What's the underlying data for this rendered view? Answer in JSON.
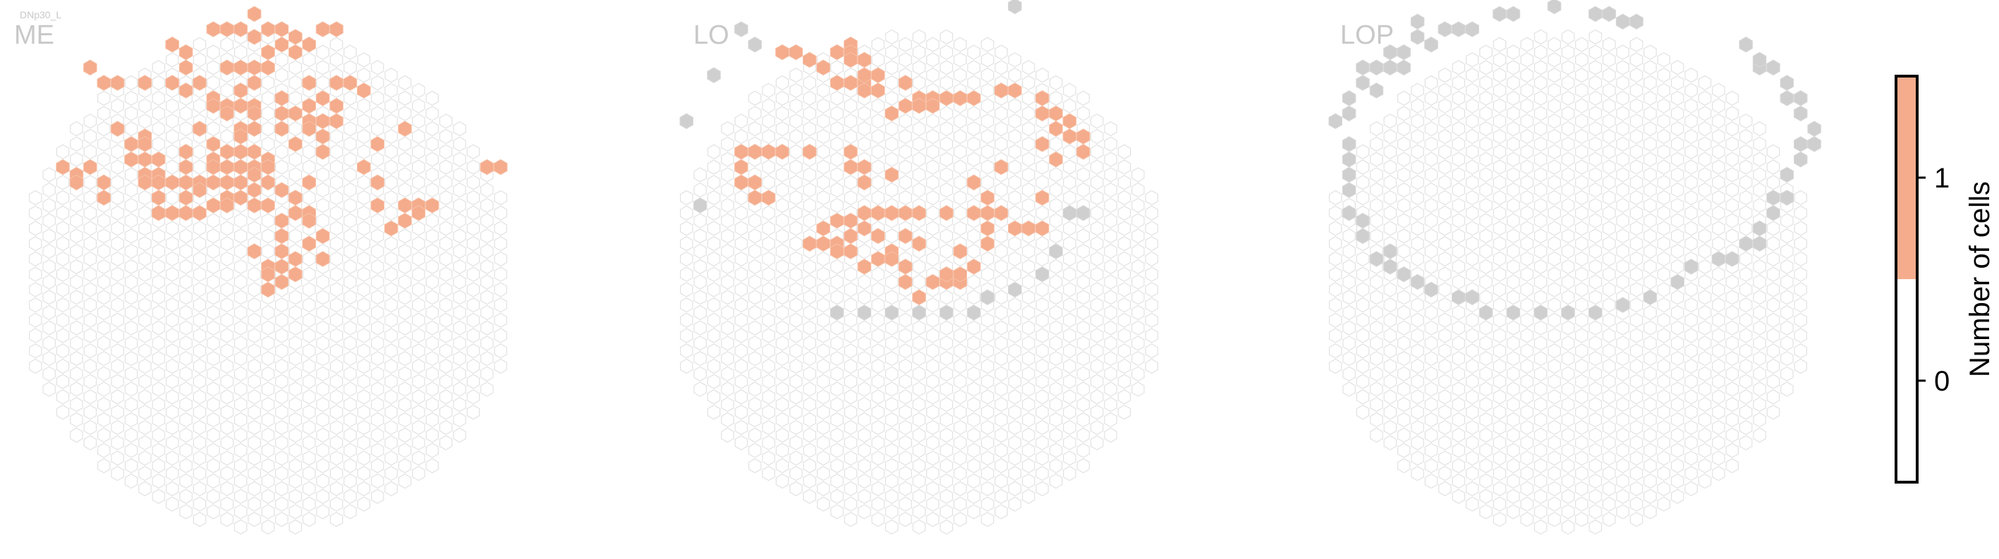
{
  "figure": {
    "cell_type": "DNp30_L",
    "colors": {
      "empty_stroke": "#e2e2e2",
      "empty_fill": "#ffffff",
      "one_fill": "#f4ac8c",
      "one_stroke": "#f7c1a8",
      "outside_fill": "#cfcfcf",
      "outside_stroke": "#d9d9d9"
    }
  },
  "chart_data": {
    "type": "heatmap",
    "description": "Hexagonal eye-map columns per neuropil; filled hexes show number of cells per column",
    "panels": [
      {
        "name": "ME",
        "grid": {
          "columns": 35,
          "radius_rows": 18
        },
        "ones": [
          [
            13,
            3
          ],
          [
            14,
            4
          ],
          [
            15,
            3
          ],
          [
            16,
            2
          ],
          [
            17,
            3
          ],
          [
            18,
            4
          ],
          [
            19,
            4
          ],
          [
            21,
            3
          ],
          [
            22,
            4
          ],
          [
            10,
            6
          ],
          [
            11,
            6
          ],
          [
            16,
            5
          ],
          [
            17,
            6
          ],
          [
            18,
            6
          ],
          [
            19,
            6
          ],
          [
            20,
            6
          ],
          [
            11,
            8
          ],
          [
            14,
            9
          ],
          [
            15,
            8
          ],
          [
            16,
            9
          ],
          [
            17,
            8
          ],
          [
            4,
            9
          ],
          [
            5,
            10
          ],
          [
            6,
            11
          ],
          [
            8,
            11
          ],
          [
            10,
            11
          ],
          [
            11,
            11
          ],
          [
            12,
            11
          ],
          [
            13,
            12
          ],
          [
            15,
            11
          ],
          [
            16,
            11
          ],
          [
            20,
            11
          ],
          [
            21,
            12
          ],
          [
            22,
            11
          ],
          [
            23,
            10
          ],
          [
            24,
            12
          ],
          [
            13,
            13
          ],
          [
            14,
            14
          ],
          [
            15,
            13
          ],
          [
            16,
            14
          ],
          [
            18,
            13
          ],
          [
            19,
            14
          ],
          [
            20,
            14
          ],
          [
            22,
            14
          ],
          [
            14,
            15
          ],
          [
            15,
            16
          ],
          [
            16,
            15
          ],
          [
            18,
            15
          ],
          [
            20,
            16
          ],
          [
            21,
            15
          ],
          [
            6,
            17
          ],
          [
            7,
            18
          ],
          [
            8,
            18
          ],
          [
            12,
            17
          ],
          [
            13,
            18
          ],
          [
            15,
            17
          ],
          [
            16,
            17
          ],
          [
            18,
            17
          ],
          [
            19,
            18
          ],
          [
            20,
            17
          ],
          [
            21,
            17
          ],
          [
            22,
            16
          ],
          [
            27,
            16
          ],
          [
            25,
            18
          ],
          [
            8,
            19
          ],
          [
            9,
            20
          ],
          [
            11,
            19
          ],
          [
            13,
            20
          ],
          [
            14,
            20
          ],
          [
            15,
            19
          ],
          [
            16,
            20
          ],
          [
            17,
            20
          ],
          [
            21,
            19
          ],
          [
            7,
            20
          ],
          [
            8,
            21
          ],
          [
            9,
            22
          ],
          [
            11,
            21
          ],
          [
            13,
            21
          ],
          [
            14,
            22
          ],
          [
            15,
            21
          ],
          [
            16,
            22
          ],
          [
            17,
            21
          ],
          [
            2,
            22
          ],
          [
            3,
            22
          ],
          [
            4,
            22
          ],
          [
            3,
            23
          ],
          [
            5,
            23
          ],
          [
            8,
            23
          ],
          [
            9,
            23
          ],
          [
            10,
            24
          ],
          [
            11,
            23
          ],
          [
            12,
            24
          ],
          [
            13,
            23
          ],
          [
            14,
            24
          ],
          [
            15,
            23
          ],
          [
            16,
            23
          ],
          [
            17,
            23
          ],
          [
            24,
            22
          ],
          [
            25,
            23
          ],
          [
            33,
            21
          ],
          [
            34,
            22
          ],
          [
            5,
            25
          ],
          [
            8,
            24
          ],
          [
            9,
            25
          ],
          [
            11,
            25
          ],
          [
            12,
            25
          ],
          [
            13,
            26
          ],
          [
            14,
            26
          ],
          [
            15,
            25
          ],
          [
            16,
            25
          ],
          [
            18,
            25
          ],
          [
            19,
            25
          ],
          [
            20,
            24
          ],
          [
            25,
            26
          ],
          [
            27,
            26
          ],
          [
            28,
            27
          ],
          [
            29,
            26
          ],
          [
            9,
            27
          ],
          [
            10,
            28
          ],
          [
            11,
            27
          ],
          [
            12,
            28
          ],
          [
            14,
            27
          ],
          [
            16,
            27
          ],
          [
            17,
            26
          ],
          [
            19,
            27
          ],
          [
            20,
            28
          ],
          [
            27,
            28
          ],
          [
            28,
            28
          ],
          [
            18,
            29
          ],
          [
            20,
            29
          ],
          [
            21,
            30
          ],
          [
            26,
            30
          ],
          [
            18,
            31
          ],
          [
            16,
            33
          ],
          [
            17,
            34
          ],
          [
            18,
            33
          ],
          [
            19,
            33
          ],
          [
            20,
            32
          ],
          [
            21,
            33
          ],
          [
            17,
            35
          ],
          [
            18,
            35
          ],
          [
            19,
            35
          ],
          [
            17,
            37
          ],
          [
            18,
            37
          ]
        ],
        "outside": []
      },
      {
        "name": "LO",
        "grid": {
          "columns": 35,
          "radius_rows": 18
        },
        "ones": [
          [
            7,
            6
          ],
          [
            8,
            7
          ],
          [
            9,
            7
          ],
          [
            11,
            6
          ],
          [
            12,
            6
          ],
          [
            12,
            7
          ],
          [
            13,
            7
          ],
          [
            10,
            9
          ],
          [
            11,
            10
          ],
          [
            12,
            11
          ],
          [
            13,
            10
          ],
          [
            14,
            10
          ],
          [
            12,
            8
          ],
          [
            13,
            9
          ],
          [
            13,
            11
          ],
          [
            14,
            12
          ],
          [
            16,
            11
          ],
          [
            17,
            12
          ],
          [
            18,
            13
          ],
          [
            19,
            12
          ],
          [
            20,
            13
          ],
          [
            21,
            12
          ],
          [
            23,
            11
          ],
          [
            24,
            12
          ],
          [
            15,
            14
          ],
          [
            16,
            14
          ],
          [
            17,
            13
          ],
          [
            18,
            14
          ],
          [
            26,
            13
          ],
          [
            26,
            15
          ],
          [
            27,
            14
          ],
          [
            27,
            16
          ],
          [
            28,
            16
          ],
          [
            28,
            18
          ],
          [
            29,
            17
          ],
          [
            29,
            19
          ],
          [
            4,
            20
          ],
          [
            5,
            19
          ],
          [
            6,
            20
          ],
          [
            7,
            19
          ],
          [
            9,
            19
          ],
          [
            12,
            20
          ],
          [
            12,
            22
          ],
          [
            13,
            21
          ],
          [
            13,
            23
          ],
          [
            15,
            22
          ],
          [
            23,
            21
          ],
          [
            26,
            19
          ],
          [
            27,
            20
          ],
          [
            21,
            23
          ],
          [
            4,
            22
          ],
          [
            5,
            23
          ],
          [
            4,
            24
          ],
          [
            5,
            25
          ],
          [
            6,
            26
          ],
          [
            13,
            27
          ],
          [
            14,
            28
          ],
          [
            15,
            27
          ],
          [
            16,
            28
          ],
          [
            17,
            27
          ],
          [
            19,
            27
          ],
          [
            21,
            27
          ],
          [
            22,
            26
          ],
          [
            23,
            27
          ],
          [
            26,
            26
          ],
          [
            11,
            28
          ],
          [
            12,
            29
          ],
          [
            13,
            29
          ],
          [
            10,
            30
          ],
          [
            11,
            31
          ],
          [
            12,
            31
          ],
          [
            14,
            31
          ],
          [
            15,
            32
          ],
          [
            16,
            31
          ],
          [
            17,
            31
          ],
          [
            9,
            31
          ],
          [
            10,
            32
          ],
          [
            11,
            32
          ],
          [
            12,
            33
          ],
          [
            13,
            34
          ],
          [
            14,
            34
          ],
          [
            15,
            33
          ],
          [
            16,
            35
          ],
          [
            22,
            28
          ],
          [
            22,
            30
          ],
          [
            24,
            30
          ],
          [
            25,
            29
          ],
          [
            26,
            30
          ],
          [
            20,
            33
          ],
          [
            21,
            34
          ],
          [
            19,
            36
          ],
          [
            20,
            37
          ],
          [
            22,
            32
          ],
          [
            16,
            37
          ],
          [
            17,
            38
          ],
          [
            18,
            37
          ],
          [
            19,
            35
          ],
          [
            20,
            36
          ]
        ],
        "outside": [
          [
            20,
            -1
          ],
          [
            24,
            1
          ],
          [
            4,
            4
          ],
          [
            5,
            5
          ],
          [
            2,
            10
          ],
          [
            0,
            16
          ],
          [
            1,
            26
          ],
          [
            29,
            27
          ],
          [
            28,
            28
          ],
          [
            27,
            32
          ],
          [
            26,
            36
          ],
          [
            24,
            38
          ],
          [
            22,
            39
          ],
          [
            11,
            40
          ],
          [
            13,
            40
          ],
          [
            15,
            40
          ],
          [
            17,
            40
          ],
          [
            19,
            40
          ],
          [
            21,
            40
          ]
        ]
      },
      {
        "name": "LOP",
        "grid": {
          "columns": 35,
          "radius_rows": 18
        },
        "ones": [],
        "outside": [
          [
            13,
            1
          ],
          [
            16,
            1
          ],
          [
            19,
            1
          ],
          [
            21,
            2
          ],
          [
            12,
            2
          ],
          [
            9,
            3
          ],
          [
            10,
            4
          ],
          [
            6,
            5
          ],
          [
            5,
            6
          ],
          [
            4,
            7
          ],
          [
            3,
            8
          ],
          [
            2,
            9
          ],
          [
            2,
            11
          ],
          [
            1,
            12
          ],
          [
            1,
            14
          ],
          [
            0,
            16
          ],
          [
            1,
            18
          ],
          [
            1,
            20
          ],
          [
            1,
            22
          ],
          [
            1,
            24
          ],
          [
            1,
            27
          ],
          [
            2,
            29
          ],
          [
            2,
            31
          ],
          [
            3,
            33
          ],
          [
            4,
            33
          ],
          [
            4,
            35
          ],
          [
            5,
            35
          ],
          [
            6,
            37
          ],
          [
            7,
            37
          ],
          [
            9,
            38
          ],
          [
            10,
            39
          ],
          [
            11,
            40
          ],
          [
            13,
            40
          ],
          [
            15,
            40
          ],
          [
            17,
            40
          ],
          [
            19,
            40
          ],
          [
            21,
            39
          ],
          [
            23,
            38
          ],
          [
            25,
            36
          ],
          [
            26,
            35
          ],
          [
            28,
            34
          ],
          [
            29,
            33
          ],
          [
            30,
            32
          ],
          [
            31,
            31
          ],
          [
            31,
            29
          ],
          [
            32,
            28
          ],
          [
            32,
            26
          ],
          [
            33,
            25
          ],
          [
            33,
            22
          ],
          [
            34,
            21
          ],
          [
            34,
            19
          ],
          [
            35,
            18
          ],
          [
            35,
            16
          ],
          [
            34,
            15
          ],
          [
            34,
            13
          ],
          [
            33,
            12
          ],
          [
            33,
            10
          ],
          [
            32,
            9
          ],
          [
            31,
            8
          ],
          [
            31,
            7
          ],
          [
            30,
            6
          ],
          [
            22,
            3
          ],
          [
            20,
            2
          ],
          [
            6,
            3
          ],
          [
            8,
            4
          ],
          [
            7,
            5
          ],
          [
            5,
            8
          ],
          [
            4,
            9
          ],
          [
            3,
            11
          ]
        ]
      }
    ],
    "colorbar": {
      "label": "Number of cells",
      "ticks": [
        "0",
        "1"
      ],
      "colors": [
        "#ffffff",
        "#f4ac8c"
      ]
    }
  }
}
